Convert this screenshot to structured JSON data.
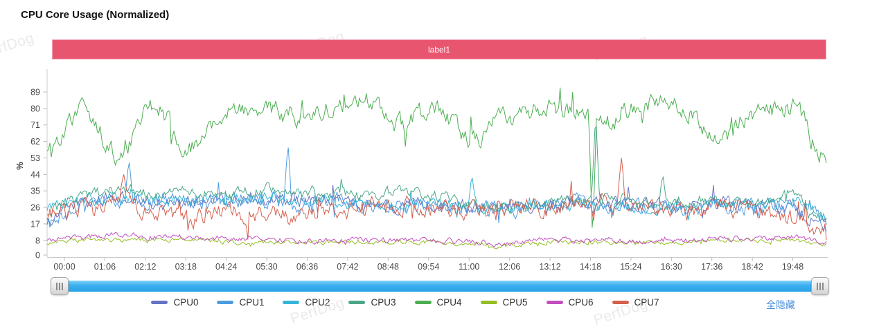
{
  "page": {
    "title": "CPU Core Usage (Normalized)"
  },
  "banner": {
    "label": "label1",
    "color": "#e8556f"
  },
  "watermark": {
    "text": "PerfDog"
  },
  "legend": {
    "hide_all_label": "全隐藏"
  },
  "scrollbar": {
    "track_color": "#3aaeee"
  },
  "chart_data": {
    "type": "line",
    "title": "CPU Core Usage (Normalized)",
    "xlabel": "",
    "ylabel": "%",
    "grid": false,
    "legend_position": "bottom",
    "x_tick_interval_seconds": 66,
    "x_tick_labels": [
      "00:00",
      "01:06",
      "02:12",
      "03:18",
      "04:24",
      "05:30",
      "06:36",
      "07:42",
      "08:48",
      "09:54",
      "11:00",
      "12:06",
      "13:12",
      "14:18",
      "15:24",
      "16:30",
      "17:36",
      "18:42",
      "19:48"
    ],
    "y_tick_labels": [
      0,
      8,
      17,
      26,
      35,
      44,
      53,
      62,
      71,
      80,
      89
    ],
    "ylim": [
      0,
      101
    ],
    "series": [
      {
        "name": "CPU0",
        "color": "#6673c3",
        "noise": 3.0,
        "anchors": [
          19,
          29,
          31,
          28,
          30,
          29,
          31,
          30,
          29,
          28,
          27,
          28,
          27,
          26,
          28,
          29,
          28,
          27,
          26,
          28,
          27,
          26,
          17
        ]
      },
      {
        "name": "CPU1",
        "color": "#4e9be0",
        "noise": 3.5,
        "anchors": [
          16,
          27,
          30,
          29,
          28,
          30,
          29,
          28,
          30,
          27,
          26,
          27,
          26,
          25,
          27,
          28,
          27,
          26,
          25,
          27,
          26,
          28,
          18
        ]
      },
      {
        "name": "CPU2",
        "color": "#35b6d9",
        "noise": 3.0,
        "anchors": [
          25,
          30,
          32,
          30,
          31,
          30,
          32,
          30,
          29,
          28,
          27,
          28,
          26,
          25,
          27,
          28,
          27,
          26,
          25,
          27,
          28,
          30,
          20
        ]
      },
      {
        "name": "CPU3",
        "color": "#4aa786",
        "noise": 2.5,
        "anchors": [
          24,
          32,
          36,
          33,
          35,
          34,
          36,
          35,
          34,
          33,
          35,
          32,
          27,
          26,
          28,
          30,
          32,
          28,
          27,
          30,
          29,
          32,
          20
        ]
      },
      {
        "name": "CPU4",
        "color": "#4cae50",
        "noise": 4.5,
        "anchors": [
          60,
          80,
          55,
          82,
          58,
          78,
          82,
          75,
          80,
          85,
          72,
          80,
          62,
          75,
          80,
          78,
          73,
          84,
          80,
          63,
          78,
          80,
          55
        ]
      },
      {
        "name": "CPU5",
        "color": "#96be25",
        "noise": 1.0,
        "anchors": [
          7,
          8,
          8,
          8,
          8,
          7,
          7,
          7,
          7,
          7,
          7,
          7,
          6,
          5,
          7,
          7,
          7,
          7,
          7,
          8,
          8,
          8,
          6
        ]
      },
      {
        "name": "CPU6",
        "color": "#c24ec0",
        "noise": 1.3,
        "anchors": [
          8,
          10,
          11,
          10,
          10,
          9,
          9,
          8,
          8,
          8,
          8,
          8,
          7,
          6,
          8,
          8,
          8,
          8,
          8,
          9,
          9,
          10,
          7
        ]
      },
      {
        "name": "CPU7",
        "color": "#d55e4c",
        "noise": 4.0,
        "anchors": [
          22,
          25,
          30,
          24,
          20,
          24,
          22,
          21,
          24,
          26,
          27,
          26,
          25,
          27,
          26,
          29,
          27,
          24,
          23,
          26,
          24,
          20,
          14
        ]
      }
    ],
    "spikes": [
      {
        "series": "CPU1",
        "t": 0.105,
        "value": 53
      },
      {
        "series": "CPU1",
        "t": 0.309,
        "value": 62
      },
      {
        "series": "CPU7",
        "t": 0.098,
        "value": 45
      },
      {
        "series": "CPU2",
        "t": 0.545,
        "value": 44
      },
      {
        "series": "CPU4",
        "t": 0.7,
        "value": 8
      },
      {
        "series": "CPU3",
        "t": 0.704,
        "value": 78
      },
      {
        "series": "CPU7",
        "t": 0.737,
        "value": 53
      },
      {
        "series": "CPU3",
        "t": 0.79,
        "value": 45
      }
    ]
  }
}
